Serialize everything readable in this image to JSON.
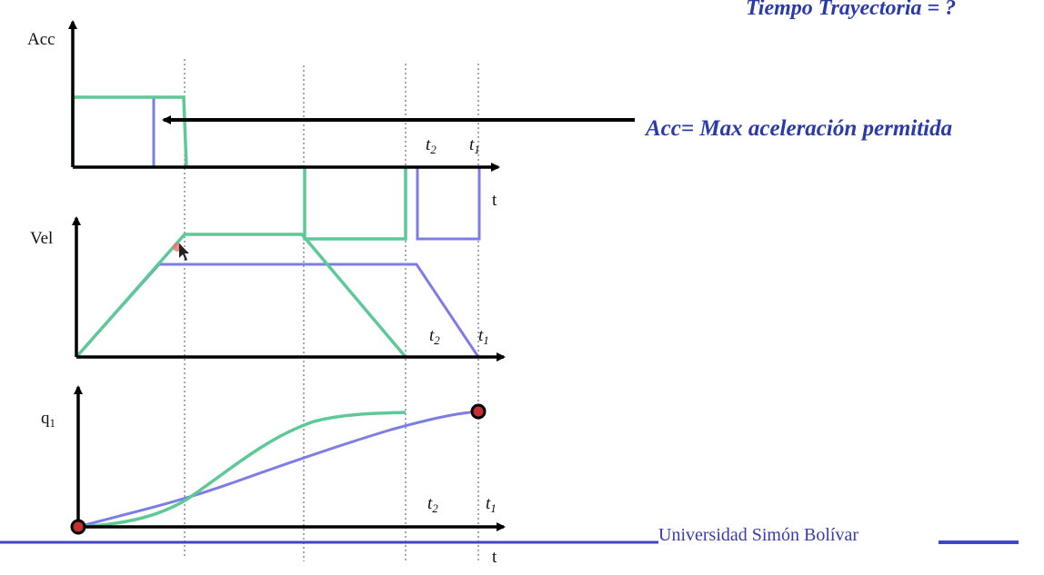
{
  "title": "Tiempo Trayectoria = ?",
  "annotation": "Acc= Max aceleración permitida",
  "footer": "Universidad Simón Bolívar",
  "plots": {
    "acc": {
      "ylabel": "Acc",
      "xlabel": "t",
      "t2_label": "t",
      "t2_sub": "2",
      "t1_label": "t",
      "t1_sub": "1"
    },
    "vel": {
      "ylabel": "Vel",
      "t2_label": "t",
      "t2_sub": "2",
      "t1_label": "t",
      "t1_sub": "1"
    },
    "pos": {
      "ylabel": "q",
      "ylabel_sub": "1",
      "xlabel": "t",
      "t2_label": "t",
      "t2_sub": "2",
      "t1_label": "t",
      "t1_sub": "1"
    }
  },
  "colors": {
    "green": "#5cc996",
    "blue": "#7d7de6",
    "axis": "#000000",
    "title": "#2a3aa8",
    "footer_line": "#3f47c4"
  }
}
